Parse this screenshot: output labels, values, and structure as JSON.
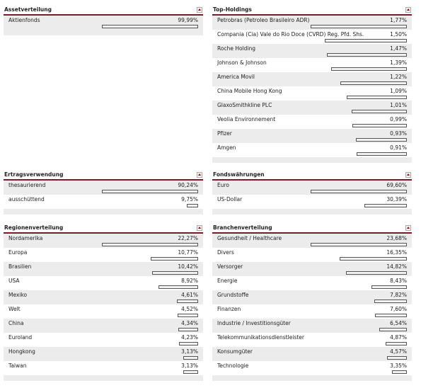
{
  "panels": [
    {
      "title": "Assetverteilung",
      "rows": [
        {
          "label": "Aktienfonds",
          "value": 99.99,
          "value_label": "99,99%"
        }
      ]
    },
    {
      "title": "Top-Holdings",
      "rows": [
        {
          "label": "Petrobras (Petroleo Brasileiro ADR)",
          "value": 1.77,
          "value_label": "1,77%"
        },
        {
          "label": "Compania (Cia) Vale do Rio Doce (CVRD) Reg. Pfd. Shs.",
          "value": 1.5,
          "value_label": "1,50%"
        },
        {
          "label": "Roche Holding",
          "value": 1.47,
          "value_label": "1,47%"
        },
        {
          "label": "Johnson & Johnson",
          "value": 1.39,
          "value_label": "1,39%"
        },
        {
          "label": "America Movil",
          "value": 1.22,
          "value_label": "1,22%"
        },
        {
          "label": "China Mobile Hong Kong",
          "value": 1.09,
          "value_label": "1,09%"
        },
        {
          "label": "GlaxoSmithkline PLC",
          "value": 1.01,
          "value_label": "1,01%"
        },
        {
          "label": "Veolia Environnement",
          "value": 0.99,
          "value_label": "0,99%"
        },
        {
          "label": "Pfizer",
          "value": 0.93,
          "value_label": "0,93%"
        },
        {
          "label": "Amgen",
          "value": 0.91,
          "value_label": "0,91%"
        }
      ]
    },
    {
      "title": "Ertragsverwendung",
      "rows": [
        {
          "label": "thesaurierend",
          "value": 90.24,
          "value_label": "90,24%"
        },
        {
          "label": "ausschüttend",
          "value": 9.75,
          "value_label": "9,75%"
        }
      ]
    },
    {
      "title": "Fondswährungen",
      "rows": [
        {
          "label": "Euro",
          "value": 69.6,
          "value_label": "69,60%"
        },
        {
          "label": "US-Dollar",
          "value": 30.39,
          "value_label": "30,39%"
        }
      ]
    },
    {
      "title": "Regionenverteilung",
      "rows": [
        {
          "label": "Nordamerika",
          "value": 22.27,
          "value_label": "22,27%"
        },
        {
          "label": "Europa",
          "value": 10.77,
          "value_label": "10,77%"
        },
        {
          "label": "Brasilien",
          "value": 10.42,
          "value_label": "10,42%"
        },
        {
          "label": "USA",
          "value": 8.92,
          "value_label": "8,92%"
        },
        {
          "label": "Mexiko",
          "value": 4.61,
          "value_label": "4,61%"
        },
        {
          "label": "Welt",
          "value": 4.52,
          "value_label": "4,52%"
        },
        {
          "label": "China",
          "value": 4.34,
          "value_label": "4,34%"
        },
        {
          "label": "Euroland",
          "value": 4.23,
          "value_label": "4,23%"
        },
        {
          "label": "Hongkong",
          "value": 3.13,
          "value_label": "3,13%"
        },
        {
          "label": "Taiwan",
          "value": 3.13,
          "value_label": "3,13%"
        }
      ]
    },
    {
      "title": "Branchenverteilung",
      "rows": [
        {
          "label": "Gesundheit / Healthcare",
          "value": 23.68,
          "value_label": "23,68%"
        },
        {
          "label": "Divers",
          "value": 16.35,
          "value_label": "16,35%"
        },
        {
          "label": "Versorger",
          "value": 14.82,
          "value_label": "14,82%"
        },
        {
          "label": "Energie",
          "value": 8.43,
          "value_label": "8,43%"
        },
        {
          "label": "Grundstoffe",
          "value": 7.82,
          "value_label": "7,82%"
        },
        {
          "label": "Finanzen",
          "value": 7.6,
          "value_label": "7,60%"
        },
        {
          "label": "Industrie / Investitionsgüter",
          "value": 6.54,
          "value_label": "6,54%"
        },
        {
          "label": "Telekommunikationsdienstleister",
          "value": 4.87,
          "value_label": "4,87%"
        },
        {
          "label": "Konsumgüter",
          "value": 4.57,
          "value_label": "4,57%"
        },
        {
          "label": "Technologie",
          "value": 3.35,
          "value_label": "3,35%"
        }
      ]
    }
  ]
}
